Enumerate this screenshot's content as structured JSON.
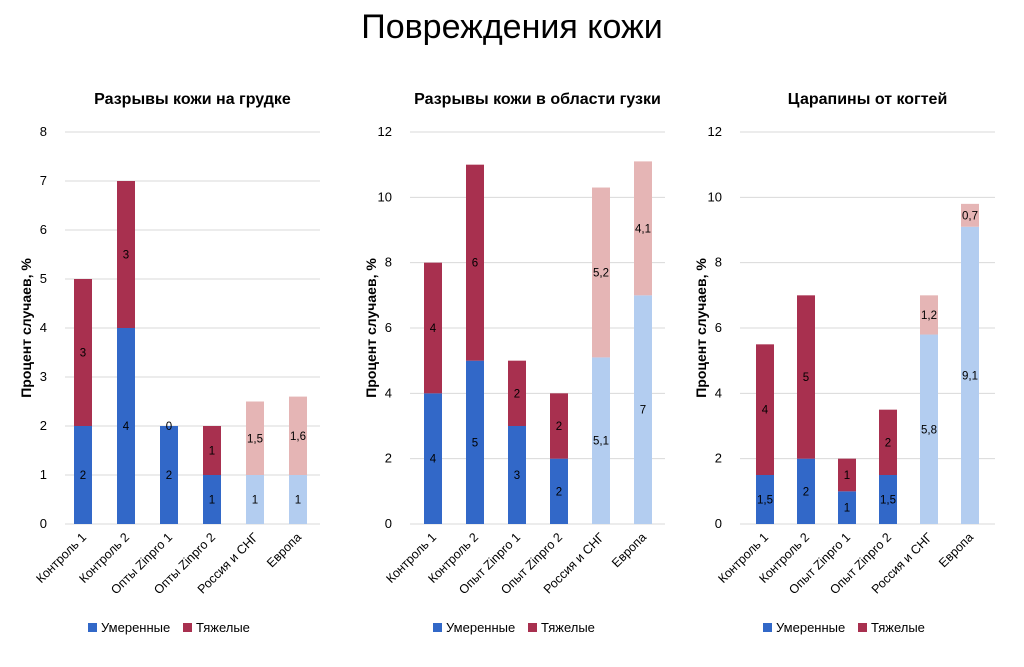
{
  "title": "Повреждения кожи",
  "colors": {
    "moderate": "#3268c8",
    "severe": "#a8304f",
    "moderate_light": "#b3cdf0",
    "severe_light": "#e5b5b5",
    "grid": "#d9d9d9"
  },
  "chart_data": [
    {
      "type": "bar",
      "stacked": true,
      "title": "Разрывы кожи на грудке",
      "ylabel": "Процент случаев, %",
      "ylim": [
        0,
        8
      ],
      "yticks": [
        0,
        1,
        2,
        3,
        4,
        5,
        6,
        7,
        8
      ],
      "categories": [
        "Контроль 1",
        "Контроль 2",
        "Опты Zinpro 1",
        "Опты Zinpro 2",
        "Россия и СНГ",
        "Европа"
      ],
      "series": [
        {
          "name": "Умеренные",
          "values": [
            2,
            4,
            2,
            1,
            1,
            1
          ],
          "labels": [
            "2",
            "4",
            "2",
            "1",
            "1",
            "1"
          ]
        },
        {
          "name": "Тяжелые",
          "values": [
            3,
            3,
            0,
            1,
            1.5,
            1.6
          ],
          "labels": [
            "3",
            "3",
            "0",
            "1",
            "1,5",
            "1,6"
          ]
        }
      ],
      "light_categories": [
        "Россия и СНГ",
        "Европа"
      ],
      "legend_position": "bottom",
      "grid": true
    },
    {
      "type": "bar",
      "stacked": true,
      "title": "Разрывы кожи в области гузки",
      "ylabel": "Процент случаев, %",
      "ylim": [
        0,
        12
      ],
      "yticks": [
        0,
        2,
        4,
        6,
        8,
        10,
        12
      ],
      "categories": [
        "Контроль 1",
        "Контроль 2",
        "Опыт Zinpro 1",
        "Опыт Zinpro 2",
        "Россия и СНГ",
        "Европа"
      ],
      "series": [
        {
          "name": "Умеренные",
          "values": [
            4,
            5,
            3,
            2,
            5.1,
            7
          ],
          "labels": [
            "4",
            "5",
            "3",
            "2",
            "5,1",
            "7"
          ]
        },
        {
          "name": "Тяжелые",
          "values": [
            4,
            6,
            2,
            2,
            5.2,
            4.1
          ],
          "labels": [
            "4",
            "6",
            "2",
            "2",
            "5,2",
            "4,1"
          ]
        }
      ],
      "light_categories": [
        "Россия и СНГ",
        "Европа"
      ],
      "legend_position": "bottom",
      "grid": true
    },
    {
      "type": "bar",
      "stacked": true,
      "title": "Царапины от когтей",
      "ylabel": "Процент случаев, %",
      "ylim": [
        0,
        12
      ],
      "yticks": [
        0,
        2,
        4,
        6,
        8,
        10,
        12
      ],
      "categories": [
        "Контроль 1",
        "Контроль 2",
        "Опыт Zinpro 1",
        "Опыт Zinpro 2",
        "Россия и СНГ",
        "Европа"
      ],
      "series": [
        {
          "name": "Умеренные",
          "values": [
            1.5,
            2,
            1,
            1.5,
            5.8,
            9.1
          ],
          "labels": [
            "1,5",
            "2",
            "1",
            "1,5",
            "5,8",
            "9,1"
          ]
        },
        {
          "name": "Тяжелые",
          "values": [
            4,
            5,
            1,
            2,
            1.2,
            0.7
          ],
          "labels": [
            "4",
            "5",
            "1",
            "2",
            "1,2",
            "0,7"
          ]
        }
      ],
      "light_categories": [
        "Россия и СНГ",
        "Европа"
      ],
      "legend_position": "bottom",
      "grid": true
    }
  ]
}
